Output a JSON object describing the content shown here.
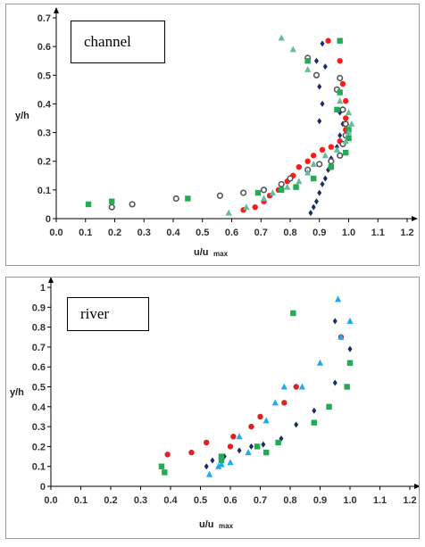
{
  "chart_data": [
    {
      "type": "scatter",
      "title": "channel",
      "xlabel": "u/u",
      "xlabel_sub": "max",
      "ylabel": "y/h",
      "xlim": [
        0,
        1.2
      ],
      "ylim": [
        0,
        0.7
      ],
      "xticks": [
        "0.0",
        "0.1",
        "0.2",
        "0.3",
        "0.4",
        "0.5",
        "0.6",
        "0.7",
        "0.8",
        "0.9",
        "1.0",
        "1.1",
        "1.2"
      ],
      "yticks": [
        "0",
        "0.1",
        "0.2",
        "0.3",
        "0.4",
        "0.5",
        "0.6",
        "0.7"
      ],
      "series": [
        {
          "marker": "diamond",
          "color": "#1a2a6c",
          "points": [
            [
              0.87,
              0.02
            ],
            [
              0.88,
              0.04
            ],
            [
              0.89,
              0.06
            ],
            [
              0.9,
              0.09
            ],
            [
              0.91,
              0.12
            ],
            [
              0.92,
              0.14
            ],
            [
              0.93,
              0.17
            ],
            [
              0.94,
              0.21
            ],
            [
              0.96,
              0.25
            ],
            [
              0.97,
              0.29
            ],
            [
              0.98,
              0.33
            ],
            [
              0.97,
              0.37
            ],
            [
              0.9,
              0.34
            ],
            [
              0.91,
              0.4
            ],
            [
              0.9,
              0.46
            ],
            [
              0.92,
              0.53
            ],
            [
              0.89,
              0.55
            ],
            [
              0.91,
              0.61
            ]
          ]
        },
        {
          "marker": "circle",
          "color": "#ff1a1a",
          "points": [
            [
              0.64,
              0.03
            ],
            [
              0.68,
              0.04
            ],
            [
              0.71,
              0.06
            ],
            [
              0.73,
              0.08
            ],
            [
              0.76,
              0.1
            ],
            [
              0.79,
              0.13
            ],
            [
              0.81,
              0.15
            ],
            [
              0.83,
              0.18
            ],
            [
              0.86,
              0.2
            ],
            [
              0.88,
              0.22
            ],
            [
              0.91,
              0.24
            ],
            [
              0.94,
              0.25
            ],
            [
              0.97,
              0.27
            ],
            [
              0.99,
              0.31
            ],
            [
              0.99,
              0.35
            ],
            [
              0.99,
              0.41
            ],
            [
              0.98,
              0.47
            ],
            [
              0.97,
              0.55
            ],
            [
              0.93,
              0.62
            ]
          ]
        },
        {
          "marker": "ring",
          "color": "#555555",
          "points": [
            [
              0.19,
              0.04
            ],
            [
              0.26,
              0.05
            ],
            [
              0.41,
              0.07
            ],
            [
              0.56,
              0.08
            ],
            [
              0.64,
              0.09
            ],
            [
              0.71,
              0.1
            ],
            [
              0.77,
              0.12
            ],
            [
              0.8,
              0.14
            ],
            [
              0.86,
              0.17
            ],
            [
              0.9,
              0.19
            ],
            [
              0.94,
              0.2
            ],
            [
              0.97,
              0.22
            ],
            [
              0.98,
              0.26
            ],
            [
              0.99,
              0.29
            ],
            [
              0.99,
              0.33
            ],
            [
              0.98,
              0.38
            ],
            [
              0.96,
              0.45
            ],
            [
              0.97,
              0.49
            ],
            [
              0.89,
              0.5
            ],
            [
              0.86,
              0.56
            ]
          ]
        },
        {
          "marker": "square",
          "color": "#22aa55",
          "points": [
            [
              0.11,
              0.05
            ],
            [
              0.19,
              0.06
            ],
            [
              0.45,
              0.07
            ],
            [
              0.69,
              0.09
            ],
            [
              0.77,
              0.1
            ],
            [
              0.82,
              0.11
            ],
            [
              0.88,
              0.14
            ],
            [
              0.94,
              0.18
            ],
            [
              0.99,
              0.23
            ],
            [
              1.0,
              0.28
            ],
            [
              1.0,
              0.31
            ],
            [
              0.96,
              0.38
            ],
            [
              0.97,
              0.44
            ],
            [
              0.86,
              0.55
            ],
            [
              0.97,
              0.62
            ]
          ]
        },
        {
          "marker": "triangle",
          "color": "#66bb99",
          "points": [
            [
              0.59,
              0.02
            ],
            [
              0.65,
              0.04
            ],
            [
              0.71,
              0.07
            ],
            [
              0.74,
              0.09
            ],
            [
              0.79,
              0.11
            ],
            [
              0.83,
              0.13
            ],
            [
              0.86,
              0.16
            ],
            [
              0.88,
              0.19
            ],
            [
              0.92,
              0.22
            ],
            [
              0.96,
              0.24
            ],
            [
              0.99,
              0.27
            ],
            [
              1.0,
              0.3
            ],
            [
              1.01,
              0.33
            ],
            [
              1.0,
              0.37
            ],
            [
              0.97,
              0.41
            ],
            [
              0.86,
              0.52
            ],
            [
              0.81,
              0.59
            ],
            [
              0.77,
              0.63
            ]
          ]
        }
      ]
    },
    {
      "type": "scatter",
      "title": "river",
      "xlabel": "u/u",
      "xlabel_sub": "max",
      "ylabel": "y/h",
      "xlim": [
        0,
        1.2
      ],
      "ylim": [
        0,
        1
      ],
      "xticks": [
        "0.0",
        "0.1",
        "0.2",
        "0.3",
        "0.4",
        "0.5",
        "0.6",
        "0.7",
        "0.8",
        "0.9",
        "1.0",
        "1.1",
        "1.2"
      ],
      "yticks": [
        "0",
        "0.1",
        "0.2",
        "0.3",
        "0.4",
        "0.5",
        "0.6",
        "0.7",
        "0.8",
        "0.9",
        "1"
      ],
      "series": [
        {
          "marker": "diamond",
          "color": "#1a2a6c",
          "points": [
            [
              0.52,
              0.1
            ],
            [
              0.54,
              0.13
            ],
            [
              0.58,
              0.15
            ],
            [
              0.63,
              0.18
            ],
            [
              0.67,
              0.2
            ],
            [
              0.71,
              0.21
            ],
            [
              0.77,
              0.24
            ],
            [
              0.82,
              0.31
            ],
            [
              0.88,
              0.38
            ],
            [
              0.95,
              0.52
            ],
            [
              1.0,
              0.62
            ],
            [
              1.0,
              0.69
            ],
            [
              0.97,
              0.75
            ],
            [
              0.95,
              0.83
            ]
          ]
        },
        {
          "marker": "circle",
          "color": "#dd2222",
          "points": [
            [
              0.39,
              0.16
            ],
            [
              0.47,
              0.17
            ],
            [
              0.52,
              0.22
            ],
            [
              0.6,
              0.2
            ],
            [
              0.61,
              0.25
            ],
            [
              0.67,
              0.3
            ],
            [
              0.7,
              0.35
            ],
            [
              0.78,
              0.42
            ],
            [
              0.82,
              0.5
            ],
            [
              0.97,
              0.75
            ],
            [
              1.0,
              0.62
            ]
          ]
        },
        {
          "marker": "square",
          "color": "#22aa55",
          "points": [
            [
              0.37,
              0.1
            ],
            [
              0.38,
              0.07
            ],
            [
              0.57,
              0.13
            ],
            [
              0.57,
              0.15
            ],
            [
              0.69,
              0.2
            ],
            [
              0.72,
              0.17
            ],
            [
              0.76,
              0.22
            ],
            [
              0.81,
              0.87
            ],
            [
              0.88,
              0.32
            ],
            [
              0.93,
              0.4
            ],
            [
              0.99,
              0.5
            ],
            [
              1.0,
              0.62
            ]
          ]
        },
        {
          "marker": "triangle",
          "color": "#1eaaee",
          "points": [
            [
              0.53,
              0.06
            ],
            [
              0.56,
              0.1
            ],
            [
              0.57,
              0.11
            ],
            [
              0.6,
              0.12
            ],
            [
              0.63,
              0.25
            ],
            [
              0.66,
              0.17
            ],
            [
              0.72,
              0.33
            ],
            [
              0.75,
              0.42
            ],
            [
              0.78,
              0.5
            ],
            [
              0.84,
              0.5
            ],
            [
              0.9,
              0.62
            ],
            [
              0.97,
              0.75
            ],
            [
              1.0,
              0.83
            ],
            [
              0.96,
              0.94
            ]
          ]
        }
      ]
    }
  ]
}
